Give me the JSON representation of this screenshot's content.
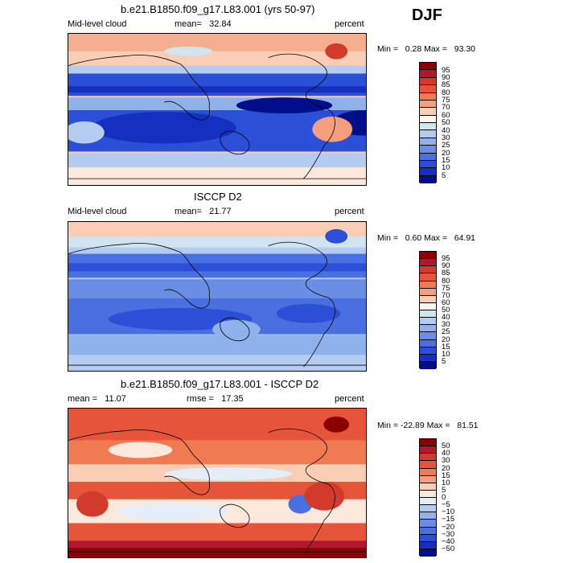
{
  "season": "DJF",
  "panels": [
    {
      "title": "b.e21.B1850.f09_g17.L83.001 (yrs 50-97)",
      "left_label": "Mid-level cloud",
      "mean_label": "mean=",
      "mean_value": "32.84",
      "unit": "percent",
      "min_label": "Min =",
      "min_value": "0.28",
      "max_label": "Max =",
      "max_value": "93.30",
      "colorbar": {
        "labels": [
          "95",
          "90",
          "85",
          "80",
          "75",
          "70",
          "60",
          "50",
          "40",
          "30",
          "25",
          "20",
          "15",
          "10",
          "5"
        ],
        "colors": [
          "#8b0000",
          "#b2182b",
          "#d23b2b",
          "#e6553a",
          "#f07a52",
          "#f59e7e",
          "#fbcdb4",
          "#fff5ee",
          "#d1e5f0",
          "#b3ccef",
          "#8fb1ec",
          "#6a8ee5",
          "#4a6fe0",
          "#2b4fd6",
          "#1530c0",
          "#000e8a"
        ]
      }
    },
    {
      "title": "ISCCP D2",
      "left_label": "Mid-level cloud",
      "mean_label": "mean=",
      "mean_value": "21.77",
      "unit": "percent",
      "min_label": "Min =",
      "min_value": "0.60",
      "max_label": "Max =",
      "max_value": "64.91",
      "colorbar": {
        "labels": [
          "95",
          "90",
          "85",
          "80",
          "75",
          "70",
          "60",
          "50",
          "40",
          "30",
          "25",
          "20",
          "15",
          "10",
          "5"
        ],
        "colors": [
          "#8b0000",
          "#b2182b",
          "#d23b2b",
          "#e6553a",
          "#f07a52",
          "#f59e7e",
          "#fbcdb4",
          "#fff5ee",
          "#d1e5f0",
          "#b3ccef",
          "#8fb1ec",
          "#6a8ee5",
          "#4a6fe0",
          "#2b4fd6",
          "#1530c0",
          "#000e8a"
        ]
      }
    },
    {
      "title": "b.e21.B1850.f09_g17.L83.001 - ISCCP D2",
      "mean_label": "mean =",
      "mean_value": "11.07",
      "rmse_label": "rmse =",
      "rmse_value": "17.35",
      "unit": "percent",
      "min_label": "Min =",
      "min_value": "-22.89",
      "max_label": "Max =",
      "max_value": "81.51",
      "colorbar": {
        "labels": [
          "50",
          "40",
          "30",
          "20",
          "15",
          "10",
          "5",
          "0",
          "−5",
          "−10",
          "−15",
          "−20",
          "−30",
          "−40",
          "−50"
        ],
        "colors": [
          "#8b0000",
          "#b2182b",
          "#d23b2b",
          "#e6553a",
          "#f07a52",
          "#f59e7e",
          "#fbcdb4",
          "#fde8dc",
          "#e3eef8",
          "#b3ccef",
          "#8fb1ec",
          "#6a8ee5",
          "#4a6fe0",
          "#2b4fd6",
          "#1530c0",
          "#000e8a"
        ]
      }
    }
  ]
}
